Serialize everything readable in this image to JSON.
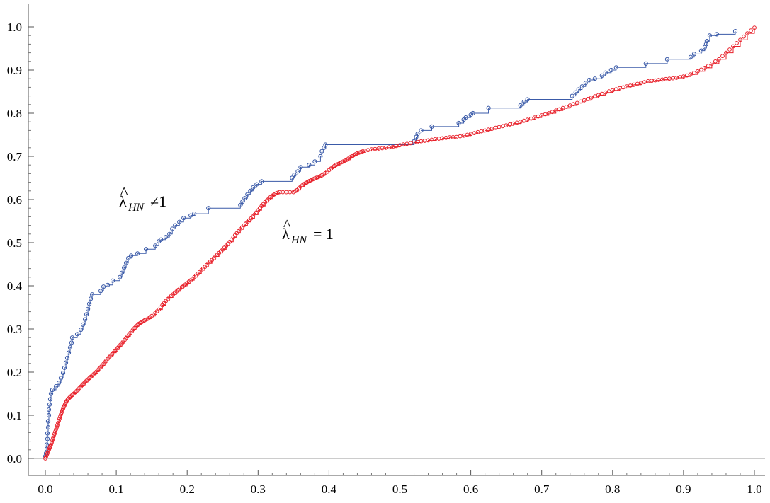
{
  "chart_data": {
    "type": "scatter",
    "title": "",
    "xlabel": "",
    "ylabel": "",
    "xlim": [
      0,
      1
    ],
    "ylim": [
      0,
      1
    ],
    "x_ticks": [
      "0.0",
      "0.1",
      "0.2",
      "0.3",
      "0.4",
      "0.5",
      "0.6",
      "0.7",
      "0.8",
      "0.9",
      "1.0"
    ],
    "y_ticks": [
      "0.0",
      "0.1",
      "0.2",
      "0.3",
      "0.4",
      "0.5",
      "0.6",
      "0.7",
      "0.8",
      "0.9",
      "1.0"
    ],
    "grid": false,
    "annotations": [
      {
        "series": "blue",
        "base": "λ",
        "hat": "^",
        "sub": "HN",
        "rel": "≠1"
      },
      {
        "series": "red",
        "base": "λ",
        "hat": "^",
        "sub": "HN",
        "rel": "= 1"
      }
    ],
    "series": [
      {
        "color": "#3a5aa8",
        "style": "step-circles",
        "points": [
          [
            0.0,
            0.005
          ],
          [
            0.001,
            0.012
          ],
          [
            0.002,
            0.022
          ],
          [
            0.002,
            0.032
          ],
          [
            0.003,
            0.045
          ],
          [
            0.003,
            0.058
          ],
          [
            0.004,
            0.072
          ],
          [
            0.004,
            0.086
          ],
          [
            0.005,
            0.1
          ],
          [
            0.005,
            0.113
          ],
          [
            0.006,
            0.125
          ],
          [
            0.007,
            0.137
          ],
          [
            0.008,
            0.15
          ],
          [
            0.01,
            0.159
          ],
          [
            0.015,
            0.167
          ],
          [
            0.019,
            0.175
          ],
          [
            0.022,
            0.186
          ],
          [
            0.025,
            0.198
          ],
          [
            0.027,
            0.21
          ],
          [
            0.029,
            0.222
          ],
          [
            0.031,
            0.233
          ],
          [
            0.033,
            0.245
          ],
          [
            0.035,
            0.257
          ],
          [
            0.037,
            0.268
          ],
          [
            0.038,
            0.28
          ],
          [
            0.045,
            0.288
          ],
          [
            0.05,
            0.298
          ],
          [
            0.053,
            0.31
          ],
          [
            0.056,
            0.322
          ],
          [
            0.058,
            0.334
          ],
          [
            0.06,
            0.346
          ],
          [
            0.062,
            0.358
          ],
          [
            0.064,
            0.37
          ],
          [
            0.066,
            0.38
          ],
          [
            0.078,
            0.388
          ],
          [
            0.082,
            0.398
          ],
          [
            0.088,
            0.402
          ],
          [
            0.095,
            0.412
          ],
          [
            0.105,
            0.42
          ],
          [
            0.108,
            0.43
          ],
          [
            0.111,
            0.442
          ],
          [
            0.114,
            0.453
          ],
          [
            0.117,
            0.464
          ],
          [
            0.121,
            0.47
          ],
          [
            0.13,
            0.475
          ],
          [
            0.142,
            0.485
          ],
          [
            0.155,
            0.493
          ],
          [
            0.16,
            0.503
          ],
          [
            0.163,
            0.507
          ],
          [
            0.17,
            0.513
          ],
          [
            0.175,
            0.52
          ],
          [
            0.179,
            0.532
          ],
          [
            0.183,
            0.54
          ],
          [
            0.189,
            0.548
          ],
          [
            0.195,
            0.557
          ],
          [
            0.205,
            0.563
          ],
          [
            0.21,
            0.567
          ],
          [
            0.23,
            0.58
          ],
          [
            0.275,
            0.587
          ],
          [
            0.278,
            0.595
          ],
          [
            0.281,
            0.603
          ],
          [
            0.285,
            0.612
          ],
          [
            0.289,
            0.62
          ],
          [
            0.293,
            0.628
          ],
          [
            0.298,
            0.635
          ],
          [
            0.305,
            0.642
          ],
          [
            0.348,
            0.65
          ],
          [
            0.351,
            0.657
          ],
          [
            0.356,
            0.665
          ],
          [
            0.36,
            0.675
          ],
          [
            0.372,
            0.68
          ],
          [
            0.38,
            0.688
          ],
          [
            0.388,
            0.7
          ],
          [
            0.39,
            0.712
          ],
          [
            0.393,
            0.72
          ],
          [
            0.395,
            0.727
          ],
          [
            0.52,
            0.735
          ],
          [
            0.523,
            0.745
          ],
          [
            0.525,
            0.752
          ],
          [
            0.53,
            0.76
          ],
          [
            0.545,
            0.769
          ],
          [
            0.583,
            0.777
          ],
          [
            0.59,
            0.785
          ],
          [
            0.593,
            0.79
          ],
          [
            0.6,
            0.796
          ],
          [
            0.603,
            0.8
          ],
          [
            0.625,
            0.812
          ],
          [
            0.67,
            0.818
          ],
          [
            0.675,
            0.826
          ],
          [
            0.68,
            0.832
          ],
          [
            0.743,
            0.84
          ],
          [
            0.748,
            0.848
          ],
          [
            0.752,
            0.855
          ],
          [
            0.757,
            0.862
          ],
          [
            0.762,
            0.87
          ],
          [
            0.767,
            0.877
          ],
          [
            0.775,
            0.88
          ],
          [
            0.785,
            0.887
          ],
          [
            0.79,
            0.894
          ],
          [
            0.798,
            0.9
          ],
          [
            0.805,
            0.906
          ],
          [
            0.847,
            0.915
          ],
          [
            0.877,
            0.925
          ],
          [
            0.91,
            0.93
          ],
          [
            0.915,
            0.937
          ],
          [
            0.925,
            0.945
          ],
          [
            0.93,
            0.953
          ],
          [
            0.932,
            0.96
          ],
          [
            0.933,
            0.967
          ],
          [
            0.937,
            0.98
          ],
          [
            0.947,
            0.983
          ],
          [
            0.973,
            0.99
          ]
        ]
      },
      {
        "color": "#e8202a",
        "style": "step-circles-dense",
        "points": [
          [
            0.0,
            0.0
          ],
          [
            0.002,
            0.008
          ],
          [
            0.004,
            0.016
          ],
          [
            0.006,
            0.024
          ],
          [
            0.008,
            0.032
          ],
          [
            0.01,
            0.042
          ],
          [
            0.012,
            0.052
          ],
          [
            0.014,
            0.062
          ],
          [
            0.016,
            0.072
          ],
          [
            0.018,
            0.082
          ],
          [
            0.02,
            0.092
          ],
          [
            0.022,
            0.102
          ],
          [
            0.024,
            0.111
          ],
          [
            0.026,
            0.119
          ],
          [
            0.028,
            0.126
          ],
          [
            0.03,
            0.133
          ],
          [
            0.033,
            0.139
          ],
          [
            0.036,
            0.144
          ],
          [
            0.04,
            0.15
          ],
          [
            0.044,
            0.156
          ],
          [
            0.048,
            0.163
          ],
          [
            0.052,
            0.17
          ],
          [
            0.056,
            0.177
          ],
          [
            0.06,
            0.183
          ],
          [
            0.064,
            0.189
          ],
          [
            0.068,
            0.195
          ],
          [
            0.072,
            0.201
          ],
          [
            0.076,
            0.208
          ],
          [
            0.08,
            0.215
          ],
          [
            0.084,
            0.223
          ],
          [
            0.088,
            0.231
          ],
          [
            0.092,
            0.238
          ],
          [
            0.096,
            0.245
          ],
          [
            0.1,
            0.252
          ],
          [
            0.104,
            0.26
          ],
          [
            0.108,
            0.267
          ],
          [
            0.112,
            0.275
          ],
          [
            0.116,
            0.283
          ],
          [
            0.12,
            0.291
          ],
          [
            0.124,
            0.299
          ],
          [
            0.128,
            0.306
          ],
          [
            0.132,
            0.312
          ],
          [
            0.136,
            0.316
          ],
          [
            0.14,
            0.32
          ],
          [
            0.145,
            0.324
          ],
          [
            0.15,
            0.33
          ],
          [
            0.155,
            0.337
          ],
          [
            0.16,
            0.345
          ],
          [
            0.165,
            0.355
          ],
          [
            0.17,
            0.365
          ],
          [
            0.175,
            0.373
          ],
          [
            0.18,
            0.38
          ],
          [
            0.185,
            0.387
          ],
          [
            0.19,
            0.394
          ],
          [
            0.195,
            0.4
          ],
          [
            0.2,
            0.406
          ],
          [
            0.205,
            0.413
          ],
          [
            0.21,
            0.42
          ],
          [
            0.215,
            0.428
          ],
          [
            0.22,
            0.436
          ],
          [
            0.225,
            0.444
          ],
          [
            0.23,
            0.452
          ],
          [
            0.235,
            0.46
          ],
          [
            0.24,
            0.468
          ],
          [
            0.245,
            0.476
          ],
          [
            0.25,
            0.484
          ],
          [
            0.255,
            0.493
          ],
          [
            0.26,
            0.502
          ],
          [
            0.265,
            0.512
          ],
          [
            0.27,
            0.522
          ],
          [
            0.275,
            0.531
          ],
          [
            0.28,
            0.54
          ],
          [
            0.285,
            0.548
          ],
          [
            0.29,
            0.556
          ],
          [
            0.295,
            0.565
          ],
          [
            0.3,
            0.575
          ],
          [
            0.305,
            0.585
          ],
          [
            0.31,
            0.594
          ],
          [
            0.315,
            0.602
          ],
          [
            0.32,
            0.609
          ],
          [
            0.325,
            0.614
          ],
          [
            0.33,
            0.617
          ],
          [
            0.34,
            0.617
          ],
          [
            0.35,
            0.617
          ],
          [
            0.355,
            0.622
          ],
          [
            0.36,
            0.63
          ],
          [
            0.365,
            0.636
          ],
          [
            0.37,
            0.641
          ],
          [
            0.375,
            0.645
          ],
          [
            0.38,
            0.649
          ],
          [
            0.385,
            0.652
          ],
          [
            0.39,
            0.656
          ],
          [
            0.395,
            0.661
          ],
          [
            0.4,
            0.668
          ],
          [
            0.405,
            0.675
          ],
          [
            0.41,
            0.68
          ],
          [
            0.415,
            0.684
          ],
          [
            0.42,
            0.688
          ],
          [
            0.425,
            0.692
          ],
          [
            0.43,
            0.698
          ],
          [
            0.435,
            0.703
          ],
          [
            0.44,
            0.707
          ],
          [
            0.445,
            0.71
          ],
          [
            0.45,
            0.713
          ],
          [
            0.46,
            0.716
          ],
          [
            0.47,
            0.718
          ],
          [
            0.48,
            0.72
          ],
          [
            0.49,
            0.722
          ],
          [
            0.5,
            0.726
          ],
          [
            0.51,
            0.729
          ],
          [
            0.52,
            0.732
          ],
          [
            0.53,
            0.735
          ],
          [
            0.54,
            0.737
          ],
          [
            0.55,
            0.74
          ],
          [
            0.56,
            0.742
          ],
          [
            0.57,
            0.744
          ],
          [
            0.58,
            0.745
          ],
          [
            0.59,
            0.748
          ],
          [
            0.6,
            0.752
          ],
          [
            0.61,
            0.756
          ],
          [
            0.62,
            0.76
          ],
          [
            0.63,
            0.764
          ],
          [
            0.64,
            0.768
          ],
          [
            0.65,
            0.772
          ],
          [
            0.66,
            0.776
          ],
          [
            0.67,
            0.78
          ],
          [
            0.68,
            0.785
          ],
          [
            0.69,
            0.79
          ],
          [
            0.7,
            0.795
          ],
          [
            0.71,
            0.8
          ],
          [
            0.72,
            0.806
          ],
          [
            0.73,
            0.812
          ],
          [
            0.74,
            0.818
          ],
          [
            0.75,
            0.824
          ],
          [
            0.76,
            0.83
          ],
          [
            0.77,
            0.836
          ],
          [
            0.78,
            0.842
          ],
          [
            0.79,
            0.848
          ],
          [
            0.8,
            0.853
          ],
          [
            0.81,
            0.858
          ],
          [
            0.82,
            0.862
          ],
          [
            0.83,
            0.866
          ],
          [
            0.84,
            0.87
          ],
          [
            0.85,
            0.874
          ],
          [
            0.86,
            0.876
          ],
          [
            0.87,
            0.878
          ],
          [
            0.88,
            0.88
          ],
          [
            0.89,
            0.882
          ],
          [
            0.9,
            0.885
          ],
          [
            0.91,
            0.89
          ],
          [
            0.92,
            0.897
          ],
          [
            0.93,
            0.905
          ],
          [
            0.94,
            0.915
          ],
          [
            0.95,
            0.925
          ],
          [
            0.96,
            0.94
          ],
          [
            0.97,
            0.955
          ],
          [
            0.98,
            0.97
          ],
          [
            0.99,
            0.985
          ],
          [
            1.0,
            0.998
          ]
        ]
      }
    ]
  }
}
